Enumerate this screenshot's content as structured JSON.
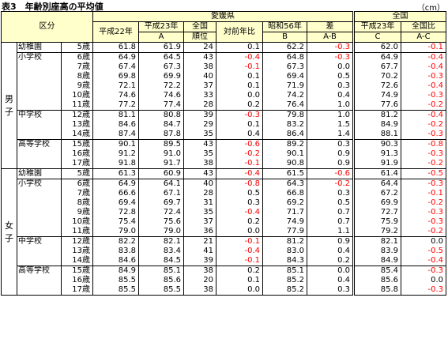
{
  "title": "表3　年齢別座高の平均値",
  "unit": "（cm）",
  "header": {
    "category": "区分",
    "ehime": "愛媛県",
    "national": "全国",
    "h22": "平成22年",
    "h23": "平成23年",
    "h23_sub": "A",
    "rank_top": "全国",
    "rank_bottom": "順位",
    "prev_diff": "対前年比",
    "s56": "昭和56年",
    "s56_sub": "B",
    "diff": "差",
    "diff_sub": "A-B",
    "nat_h23": "平成23年",
    "nat_h23_sub": "C",
    "nat_diff": "全国比",
    "nat_diff_sub": "A-C"
  },
  "genders": [
    {
      "label": "男子",
      "groups": [
        {
          "school": "幼稚園",
          "rows": [
            {
              "age": "5歳",
              "h22": "61.8",
              "h23": "61.9",
              "rank": "24",
              "prev": "0.1",
              "s56": "62.2",
              "diffB": "-0.3",
              "nat": "62.0",
              "diffC": "-0.1"
            }
          ]
        },
        {
          "school": "小学校",
          "rows": [
            {
              "age": "6歳",
              "h22": "64.9",
              "h23": "64.5",
              "rank": "43",
              "prev": "-0.4",
              "s56": "64.8",
              "diffB": "-0.3",
              "nat": "64.9",
              "diffC": "-0.4"
            },
            {
              "age": "7歳",
              "h22": "67.4",
              "h23": "67.3",
              "rank": "38",
              "prev": "-0.1",
              "s56": "67.3",
              "diffB": "0.0",
              "nat": "67.7",
              "diffC": "-0.4"
            },
            {
              "age": "8歳",
              "h22": "69.8",
              "h23": "69.9",
              "rank": "40",
              "prev": "0.1",
              "s56": "69.4",
              "diffB": "0.5",
              "nat": "70.2",
              "diffC": "-0.3"
            },
            {
              "age": "9歳",
              "h22": "72.1",
              "h23": "72.2",
              "rank": "37",
              "prev": "0.1",
              "s56": "71.9",
              "diffB": "0.3",
              "nat": "72.6",
              "diffC": "-0.4"
            },
            {
              "age": "10歳",
              "h22": "74.6",
              "h23": "74.6",
              "rank": "33",
              "prev": "0.0",
              "s56": "74.2",
              "diffB": "0.4",
              "nat": "74.9",
              "diffC": "-0.3"
            },
            {
              "age": "11歳",
              "h22": "77.2",
              "h23": "77.4",
              "rank": "28",
              "prev": "0.2",
              "s56": "76.4",
              "diffB": "1.0",
              "nat": "77.6",
              "diffC": "-0.2"
            }
          ]
        },
        {
          "school": "中学校",
          "rows": [
            {
              "age": "12歳",
              "h22": "81.1",
              "h23": "80.8",
              "rank": "39",
              "prev": "-0.3",
              "s56": "79.8",
              "diffB": "1.0",
              "nat": "81.2",
              "diffC": "-0.4"
            },
            {
              "age": "13歳",
              "h22": "84.6",
              "h23": "84.7",
              "rank": "29",
              "prev": "0.1",
              "s56": "83.2",
              "diffB": "1.5",
              "nat": "84.9",
              "diffC": "-0.2"
            },
            {
              "age": "14歳",
              "h22": "87.4",
              "h23": "87.8",
              "rank": "35",
              "prev": "0.4",
              "s56": "86.4",
              "diffB": "1.4",
              "nat": "88.1",
              "diffC": "-0.3"
            }
          ]
        },
        {
          "school": "高等学校",
          "rows": [
            {
              "age": "15歳",
              "h22": "90.1",
              "h23": "89.5",
              "rank": "43",
              "prev": "-0.6",
              "s56": "89.2",
              "diffB": "0.3",
              "nat": "90.3",
              "diffC": "-0.8"
            },
            {
              "age": "16歳",
              "h22": "91.2",
              "h23": "91.0",
              "rank": "35",
              "prev": "-0.2",
              "s56": "90.1",
              "diffB": "0.9",
              "nat": "91.3",
              "diffC": "-0.3"
            },
            {
              "age": "17歳",
              "h22": "91.8",
              "h23": "91.7",
              "rank": "38",
              "prev": "-0.1",
              "s56": "90.8",
              "diffB": "0.9",
              "nat": "91.9",
              "diffC": "-0.2"
            }
          ]
        }
      ]
    },
    {
      "label": "女子",
      "groups": [
        {
          "school": "幼稚園",
          "rows": [
            {
              "age": "5歳",
              "h22": "61.3",
              "h23": "60.9",
              "rank": "43",
              "prev": "-0.4",
              "s56": "61.5",
              "diffB": "-0.6",
              "nat": "61.4",
              "diffC": "-0.5"
            }
          ]
        },
        {
          "school": "小学校",
          "rows": [
            {
              "age": "6歳",
              "h22": "64.9",
              "h23": "64.1",
              "rank": "40",
              "prev": "-0.8",
              "s56": "64.3",
              "diffB": "-0.2",
              "nat": "64.4",
              "diffC": "-0.3"
            },
            {
              "age": "7歳",
              "h22": "66.6",
              "h23": "67.1",
              "rank": "28",
              "prev": "0.5",
              "s56": "66.8",
              "diffB": "0.3",
              "nat": "67.2",
              "diffC": "-0.1"
            },
            {
              "age": "8歳",
              "h22": "69.4",
              "h23": "69.7",
              "rank": "31",
              "prev": "0.3",
              "s56": "69.2",
              "diffB": "0.5",
              "nat": "69.9",
              "diffC": "-0.2"
            },
            {
              "age": "9歳",
              "h22": "72.8",
              "h23": "72.4",
              "rank": "35",
              "prev": "-0.4",
              "s56": "71.7",
              "diffB": "0.7",
              "nat": "72.7",
              "diffC": "-0.3"
            },
            {
              "age": "10歳",
              "h22": "75.4",
              "h23": "75.6",
              "rank": "37",
              "prev": "0.2",
              "s56": "74.9",
              "diffB": "0.7",
              "nat": "75.9",
              "diffC": "-0.3"
            },
            {
              "age": "11歳",
              "h22": "79.0",
              "h23": "79.0",
              "rank": "36",
              "prev": "0.0",
              "s56": "77.9",
              "diffB": "1.1",
              "nat": "79.2",
              "diffC": "-0.2"
            }
          ]
        },
        {
          "school": "中学校",
          "rows": [
            {
              "age": "12歳",
              "h22": "82.2",
              "h23": "82.1",
              "rank": "21",
              "prev": "-0.1",
              "s56": "81.2",
              "diffB": "0.9",
              "nat": "82.1",
              "diffC": "0.0"
            },
            {
              "age": "13歳",
              "h22": "83.8",
              "h23": "83.4",
              "rank": "41",
              "prev": "-0.4",
              "s56": "83.0",
              "diffB": "0.4",
              "nat": "83.9",
              "diffC": "-0.5"
            },
            {
              "age": "14歳",
              "h22": "84.6",
              "h23": "84.5",
              "rank": "39",
              "prev": "-0.1",
              "s56": "84.3",
              "diffB": "0.2",
              "nat": "84.9",
              "diffC": "-0.4"
            }
          ]
        },
        {
          "school": "高等学校",
          "rows": [
            {
              "age": "15歳",
              "h22": "84.9",
              "h23": "85.1",
              "rank": "38",
              "prev": "0.2",
              "s56": "85.1",
              "diffB": "0.0",
              "nat": "85.4",
              "diffC": "-0.3"
            },
            {
              "age": "16歳",
              "h22": "85.5",
              "h23": "85.6",
              "rank": "20",
              "prev": "0.1",
              "s56": "85.2",
              "diffB": "0.4",
              "nat": "85.6",
              "diffC": "0.0"
            },
            {
              "age": "17歳",
              "h22": "85.5",
              "h23": "85.5",
              "rank": "38",
              "prev": "0.0",
              "s56": "85.2",
              "diffB": "0.3",
              "nat": "85.8",
              "diffC": "-0.3"
            }
          ]
        }
      ]
    }
  ]
}
